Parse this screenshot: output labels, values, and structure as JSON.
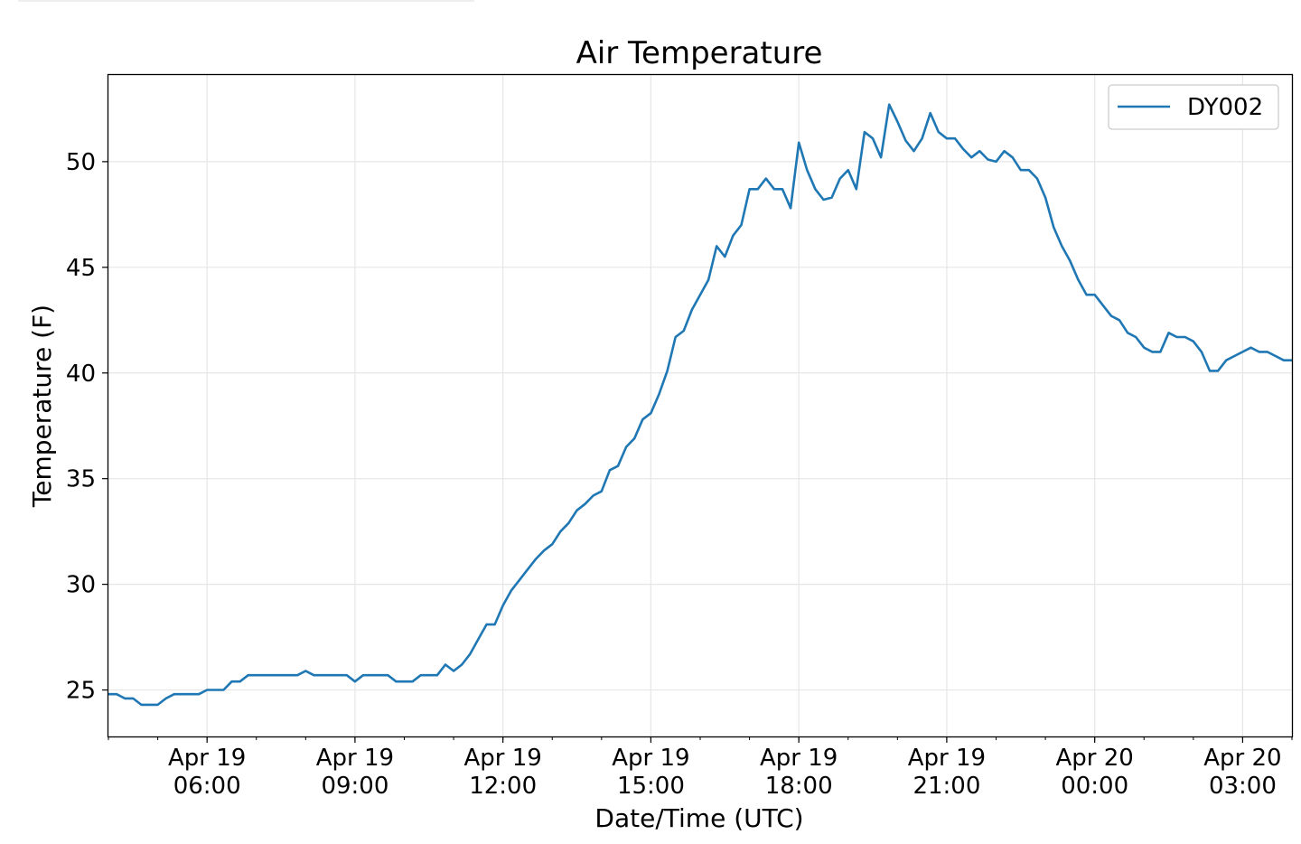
{
  "chart_data": {
    "type": "line",
    "title": "Air Temperature",
    "xlabel": "Date/Time (UTC)",
    "ylabel": "Temperature (F)",
    "x_unit": "datetime UTC",
    "xlim": [
      "2019-04-19 04:00",
      "2019-04-20 04:00"
    ],
    "ylim": [
      22.8,
      54.1
    ],
    "grid": true,
    "legend_position": "top-right",
    "x_ticks": [
      {
        "value": "2019-04-19 06:00",
        "line1": "Apr 19",
        "line2": "06:00"
      },
      {
        "value": "2019-04-19 09:00",
        "line1": "Apr 19",
        "line2": "09:00"
      },
      {
        "value": "2019-04-19 12:00",
        "line1": "Apr 19",
        "line2": "12:00"
      },
      {
        "value": "2019-04-19 15:00",
        "line1": "Apr 19",
        "line2": "15:00"
      },
      {
        "value": "2019-04-19 18:00",
        "line1": "Apr 19",
        "line2": "18:00"
      },
      {
        "value": "2019-04-19 21:00",
        "line1": "Apr 19",
        "line2": "21:00"
      },
      {
        "value": "2019-04-20 00:00",
        "line1": "Apr 20",
        "line2": "00:00"
      },
      {
        "value": "2019-04-20 03:00",
        "line1": "Apr 20",
        "line2": "03:00"
      }
    ],
    "y_ticks": [
      25,
      30,
      35,
      40,
      45,
      50
    ],
    "series": [
      {
        "name": "DY002",
        "color": "#1f77b4",
        "x": [
          "2019-04-19 04:00",
          "2019-04-19 04:10",
          "2019-04-19 04:20",
          "2019-04-19 04:30",
          "2019-04-19 04:40",
          "2019-04-19 04:50",
          "2019-04-19 05:00",
          "2019-04-19 05:10",
          "2019-04-19 05:20",
          "2019-04-19 05:30",
          "2019-04-19 05:40",
          "2019-04-19 05:50",
          "2019-04-19 06:00",
          "2019-04-19 06:10",
          "2019-04-19 06:20",
          "2019-04-19 06:30",
          "2019-04-19 06:40",
          "2019-04-19 06:50",
          "2019-04-19 07:00",
          "2019-04-19 07:10",
          "2019-04-19 07:20",
          "2019-04-19 07:30",
          "2019-04-19 07:40",
          "2019-04-19 07:50",
          "2019-04-19 08:00",
          "2019-04-19 08:10",
          "2019-04-19 08:20",
          "2019-04-19 08:30",
          "2019-04-19 08:40",
          "2019-04-19 08:50",
          "2019-04-19 09:00",
          "2019-04-19 09:10",
          "2019-04-19 09:20",
          "2019-04-19 09:30",
          "2019-04-19 09:40",
          "2019-04-19 09:50",
          "2019-04-19 10:00",
          "2019-04-19 10:10",
          "2019-04-19 10:20",
          "2019-04-19 10:30",
          "2019-04-19 10:40",
          "2019-04-19 10:50",
          "2019-04-19 11:00",
          "2019-04-19 11:10",
          "2019-04-19 11:20",
          "2019-04-19 11:30",
          "2019-04-19 11:40",
          "2019-04-19 11:50",
          "2019-04-19 12:00",
          "2019-04-19 12:10",
          "2019-04-19 12:20",
          "2019-04-19 12:30",
          "2019-04-19 12:40",
          "2019-04-19 12:50",
          "2019-04-19 13:00",
          "2019-04-19 13:10",
          "2019-04-19 13:20",
          "2019-04-19 13:30",
          "2019-04-19 13:40",
          "2019-04-19 13:50",
          "2019-04-19 14:00",
          "2019-04-19 14:10",
          "2019-04-19 14:20",
          "2019-04-19 14:30",
          "2019-04-19 14:40",
          "2019-04-19 14:50",
          "2019-04-19 15:00",
          "2019-04-19 15:10",
          "2019-04-19 15:20",
          "2019-04-19 15:30",
          "2019-04-19 15:40",
          "2019-04-19 15:50",
          "2019-04-19 16:00",
          "2019-04-19 16:10",
          "2019-04-19 16:20",
          "2019-04-19 16:30",
          "2019-04-19 16:40",
          "2019-04-19 16:50",
          "2019-04-19 17:00",
          "2019-04-19 17:10",
          "2019-04-19 17:20",
          "2019-04-19 17:30",
          "2019-04-19 17:40",
          "2019-04-19 17:50",
          "2019-04-19 18:00",
          "2019-04-19 18:10",
          "2019-04-19 18:20",
          "2019-04-19 18:30",
          "2019-04-19 18:40",
          "2019-04-19 18:50",
          "2019-04-19 19:00",
          "2019-04-19 19:10",
          "2019-04-19 19:20",
          "2019-04-19 19:30",
          "2019-04-19 19:40",
          "2019-04-19 19:50",
          "2019-04-19 20:00",
          "2019-04-19 20:10",
          "2019-04-19 20:20",
          "2019-04-19 20:30",
          "2019-04-19 20:40",
          "2019-04-19 20:50",
          "2019-04-19 21:00",
          "2019-04-19 21:10",
          "2019-04-19 21:20",
          "2019-04-19 21:30",
          "2019-04-19 21:40",
          "2019-04-19 21:50",
          "2019-04-19 22:00",
          "2019-04-19 22:10",
          "2019-04-19 22:20",
          "2019-04-19 22:30",
          "2019-04-19 22:40",
          "2019-04-19 22:50",
          "2019-04-19 23:00",
          "2019-04-19 23:10",
          "2019-04-19 23:20",
          "2019-04-19 23:30",
          "2019-04-19 23:40",
          "2019-04-19 23:50",
          "2019-04-20 00:00",
          "2019-04-20 00:10",
          "2019-04-20 00:20",
          "2019-04-20 00:30",
          "2019-04-20 00:40",
          "2019-04-20 00:50",
          "2019-04-20 01:00",
          "2019-04-20 01:10",
          "2019-04-20 01:20",
          "2019-04-20 01:30",
          "2019-04-20 01:40",
          "2019-04-20 01:50",
          "2019-04-20 02:00",
          "2019-04-20 02:10",
          "2019-04-20 02:20",
          "2019-04-20 02:30",
          "2019-04-20 02:40",
          "2019-04-20 02:50",
          "2019-04-20 03:00",
          "2019-04-20 03:10",
          "2019-04-20 03:20",
          "2019-04-20 03:30",
          "2019-04-20 03:40",
          "2019-04-20 03:50",
          "2019-04-20 04:00"
        ],
        "values": [
          24.8,
          24.8,
          24.6,
          24.6,
          24.3,
          24.3,
          24.3,
          24.6,
          24.8,
          24.8,
          24.8,
          24.8,
          25.0,
          25.0,
          25.0,
          25.4,
          25.4,
          25.7,
          25.7,
          25.7,
          25.7,
          25.7,
          25.7,
          25.7,
          25.9,
          25.7,
          25.7,
          25.7,
          25.7,
          25.7,
          25.4,
          25.7,
          25.7,
          25.7,
          25.7,
          25.4,
          25.4,
          25.4,
          25.7,
          25.7,
          25.7,
          26.2,
          25.9,
          26.2,
          26.7,
          27.4,
          28.1,
          28.1,
          29.0,
          29.7,
          30.2,
          30.7,
          31.2,
          31.6,
          31.9,
          32.5,
          32.9,
          33.5,
          33.8,
          34.2,
          34.4,
          35.4,
          35.6,
          36.5,
          36.9,
          37.8,
          38.1,
          39.0,
          40.1,
          41.7,
          42.0,
          43.0,
          43.7,
          44.4,
          46.0,
          45.5,
          46.5,
          47.0,
          48.7,
          48.7,
          49.2,
          48.7,
          48.7,
          47.8,
          50.9,
          49.6,
          48.7,
          48.2,
          48.3,
          49.2,
          49.6,
          48.7,
          51.4,
          51.1,
          50.2,
          52.7,
          51.9,
          51.0,
          50.5,
          51.1,
          52.3,
          51.4,
          51.1,
          51.1,
          50.6,
          50.2,
          50.5,
          50.1,
          50.0,
          50.5,
          50.2,
          49.6,
          49.6,
          49.2,
          48.3,
          46.9,
          46.0,
          45.3,
          44.4,
          43.7,
          43.7,
          43.2,
          42.7,
          42.5,
          41.9,
          41.7,
          41.2,
          41.0,
          41.0,
          41.9,
          41.7,
          41.7,
          41.5,
          41.0,
          40.1,
          40.1,
          40.6,
          40.8,
          41.0,
          41.2,
          41.0,
          41.0,
          40.8,
          40.6,
          40.6
        ]
      }
    ]
  }
}
